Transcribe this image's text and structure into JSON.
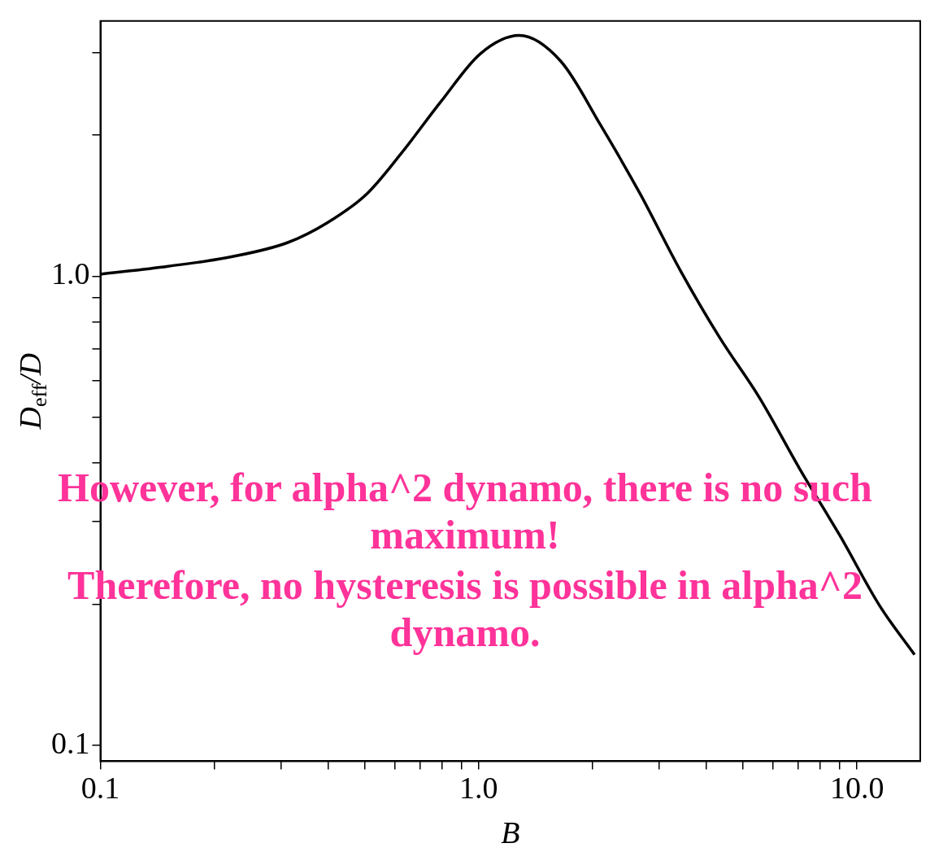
{
  "chart_data": {
    "type": "line",
    "xlabel": "B",
    "ylabel": "D$_{eff}$/D",
    "log": "xy",
    "grid": false,
    "legend": false,
    "marker": "none",
    "line_style": "solid",
    "x": [
      0.1,
      0.151,
      0.222,
      0.313,
      0.398,
      0.507,
      0.625,
      0.796,
      1.01,
      1.28,
      1.65,
      2.1,
      2.67,
      3.41,
      4.34,
      5.53,
      7.05,
      8.99,
      11.5,
      14.2
    ],
    "series": [
      {
        "color": "#000000",
        "values": [
          1.01,
          1.05,
          1.1,
          1.18,
          1.3,
          1.5,
          1.83,
          2.36,
          2.98,
          3.26,
          2.87,
          2.1,
          1.5,
          1.03,
          0.739,
          0.55,
          0.389,
          0.281,
          0.198,
          0.156
        ]
      }
    ],
    "xlim": [
      0.1,
      14.7
    ],
    "ylim": [
      0.0925,
      3.5
    ],
    "xticks": [
      {
        "value": 0.1,
        "label": "0.1"
      },
      {
        "value": 0.2,
        "label": null
      },
      {
        "value": 0.3,
        "label": null
      },
      {
        "value": 0.4,
        "label": null
      },
      {
        "value": 0.5,
        "label": null
      },
      {
        "value": 0.6,
        "label": null
      },
      {
        "value": 0.7,
        "label": null
      },
      {
        "value": 0.8,
        "label": null
      },
      {
        "value": 0.9,
        "label": null
      },
      {
        "value": 1,
        "label": "1.0"
      },
      {
        "value": 2,
        "label": null
      },
      {
        "value": 3,
        "label": null
      },
      {
        "value": 4,
        "label": null
      },
      {
        "value": 5,
        "label": null
      },
      {
        "value": 6,
        "label": null
      },
      {
        "value": 7,
        "label": null
      },
      {
        "value": 8,
        "label": null
      },
      {
        "value": 9,
        "label": null
      },
      {
        "value": 10,
        "label": "10.0"
      }
    ],
    "yticks": [
      {
        "value": 0.1,
        "label": "0.1"
      },
      {
        "value": 0.2,
        "label": null
      },
      {
        "value": 0.3,
        "label": null
      },
      {
        "value": 0.4,
        "label": null
      },
      {
        "value": 0.5,
        "label": null
      },
      {
        "value": 0.6,
        "label": null
      },
      {
        "value": 0.7,
        "label": null
      },
      {
        "value": 0.8,
        "label": null
      },
      {
        "value": 0.9,
        "label": null
      },
      {
        "value": 1,
        "label": "1.0"
      },
      {
        "value": 2,
        "label": null
      },
      {
        "value": 3,
        "label": null
      }
    ],
    "annotations": [
      "However, for alpha^2 dynamo, there is no such maximum!",
      "Therefore, no hysteresis is possible in alpha^2 dynamo."
    ]
  }
}
